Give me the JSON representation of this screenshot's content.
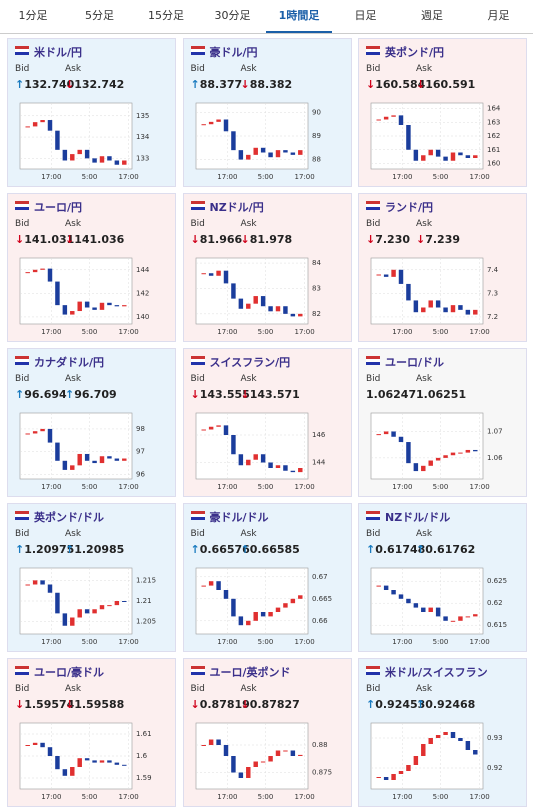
{
  "tabs": [
    "1分足",
    "5分足",
    "15分足",
    "30分足",
    "1時間足",
    "日足",
    "週足",
    "月足"
  ],
  "active_tab": 4,
  "bid_label": "Bid",
  "ask_label": "Ask",
  "panels": [
    {
      "name": "米ドル/円",
      "trend": "up",
      "bid_arrow": "↑",
      "bid": "132.740",
      "ask_arrow": "↓",
      "ask": "132.742",
      "chart": {
        "ylim": [
          132.5,
          135.6
        ],
        "yticks": [
          135,
          134,
          133
        ],
        "xticks": [
          "17:00",
          "5:00",
          "17:00"
        ],
        "values": [
          134.5,
          134.7,
          134.8,
          134.3,
          133.4,
          132.9,
          133.2,
          133.4,
          133.0,
          132.8,
          133.1,
          132.9,
          132.7,
          132.9
        ]
      }
    },
    {
      "name": "豪ドル/円",
      "trend": "up",
      "bid_arrow": "↑",
      "bid": "88.377",
      "ask_arrow": "↓",
      "ask": "88.382",
      "chart": {
        "ylim": [
          87.6,
          90.4
        ],
        "yticks": [
          90,
          89,
          88
        ],
        "xticks": [
          "17:00",
          "5:00",
          "17:00"
        ],
        "values": [
          89.5,
          89.6,
          89.7,
          89.2,
          88.4,
          88.0,
          88.2,
          88.5,
          88.3,
          88.1,
          88.4,
          88.3,
          88.2,
          88.4
        ]
      }
    },
    {
      "name": "英ポンド/円",
      "trend": "down",
      "bid_arrow": "↓",
      "bid": "160.584",
      "ask_arrow": "↓",
      "ask": "160.591",
      "chart": {
        "ylim": [
          159.6,
          164.4
        ],
        "yticks": [
          164,
          163,
          162,
          161,
          160
        ],
        "xticks": [
          "17:00",
          "5:00",
          "17:00"
        ],
        "values": [
          163.2,
          163.4,
          163.5,
          162.8,
          161.0,
          160.2,
          160.6,
          161.0,
          160.5,
          160.2,
          160.8,
          160.6,
          160.4,
          160.6
        ]
      }
    },
    {
      "name": "ユーロ/円",
      "trend": "down",
      "bid_arrow": "↓",
      "bid": "141.031",
      "ask_arrow": "↓",
      "ask": "141.036",
      "chart": {
        "ylim": [
          139.4,
          145
        ],
        "yticks": [
          144,
          142,
          140
        ],
        "xticks": [
          "17:00",
          "5:00",
          "17:00"
        ],
        "values": [
          143.8,
          144.0,
          144.1,
          143.0,
          141.0,
          140.2,
          140.5,
          141.3,
          140.8,
          140.6,
          141.2,
          141.0,
          140.9,
          141.0
        ]
      }
    },
    {
      "name": "NZドル/円",
      "trend": "down",
      "bid_arrow": "↓",
      "bid": "81.966",
      "ask_arrow": "↓",
      "ask": "81.978",
      "chart": {
        "ylim": [
          81.6,
          84.2
        ],
        "yticks": [
          84,
          83,
          82
        ],
        "xticks": [
          "17:00",
          "5:00",
          "17:00"
        ],
        "values": [
          83.6,
          83.5,
          83.7,
          83.2,
          82.6,
          82.2,
          82.4,
          82.7,
          82.3,
          82.1,
          82.3,
          82.0,
          81.9,
          82.0
        ]
      }
    },
    {
      "name": "ランド/円",
      "trend": "down",
      "bid_arrow": "↓",
      "bid": "7.230",
      "ask_arrow": "↓",
      "ask": "7.239",
      "chart": {
        "ylim": [
          7.17,
          7.45
        ],
        "yticks": [
          7.4,
          7.3,
          7.2
        ],
        "xticks": [
          "17:00",
          "5:00",
          "17:00"
        ],
        "values": [
          7.38,
          7.37,
          7.4,
          7.34,
          7.27,
          7.22,
          7.24,
          7.27,
          7.24,
          7.22,
          7.25,
          7.23,
          7.21,
          7.23
        ]
      }
    },
    {
      "name": "カナダドル/円",
      "trend": "up",
      "bid_arrow": "↑",
      "bid": "96.694",
      "ask_arrow": "↑",
      "ask": "96.709",
      "chart": {
        "ylim": [
          95.8,
          98.7
        ],
        "yticks": [
          98,
          97,
          96
        ],
        "xticks": [
          "17:00",
          "5:00",
          "17:00"
        ],
        "values": [
          97.8,
          97.9,
          98.0,
          97.4,
          96.6,
          96.2,
          96.4,
          96.9,
          96.6,
          96.5,
          96.8,
          96.7,
          96.6,
          96.7
        ]
      }
    },
    {
      "name": "スイスフラン/円",
      "trend": "down",
      "bid_arrow": "↓",
      "bid": "143.555",
      "ask_arrow": "↓",
      "ask": "143.571",
      "chart": {
        "ylim": [
          142.8,
          147.6
        ],
        "yticks": [
          146,
          144
        ],
        "xticks": [
          "17:00",
          "5:00",
          "17:00"
        ],
        "values": [
          146.4,
          146.6,
          146.7,
          146.0,
          144.6,
          143.8,
          144.2,
          144.6,
          144.0,
          143.6,
          143.8,
          143.4,
          143.3,
          143.6
        ]
      }
    },
    {
      "name": "ユーロ/ドル",
      "trend": "flat",
      "bid": "1.06247",
      "ask": "1.06251",
      "chart": {
        "ylim": [
          1.052,
          1.077
        ],
        "yticks": [
          1.07,
          1.06
        ],
        "xticks": [
          "17:00",
          "5:00",
          "17:00"
        ],
        "values": [
          1.069,
          1.07,
          1.068,
          1.066,
          1.058,
          1.055,
          1.057,
          1.059,
          1.06,
          1.061,
          1.062,
          1.062,
          1.063,
          1.0625
        ]
      }
    },
    {
      "name": "英ポンド/ドル",
      "trend": "up",
      "bid_arrow": "↑",
      "bid": "1.20975",
      "ask_arrow": "↑",
      "ask": "1.20985",
      "chart": {
        "ylim": [
          1.202,
          1.218
        ],
        "yticks": [
          1.215,
          1.21,
          1.205
        ],
        "xticks": [
          "17:00",
          "5:00",
          "17:00"
        ],
        "values": [
          1.214,
          1.215,
          1.214,
          1.212,
          1.207,
          1.204,
          1.206,
          1.208,
          1.207,
          1.208,
          1.209,
          1.209,
          1.21,
          1.2098
        ]
      }
    },
    {
      "name": "豪ドル/ドル",
      "trend": "up",
      "bid_arrow": "↑",
      "bid": "0.66576",
      "ask_arrow": "↑",
      "ask": "0.66585",
      "chart": {
        "ylim": [
          0.657,
          0.672
        ],
        "yticks": [
          0.67,
          0.665,
          0.66
        ],
        "xticks": [
          "17:00",
          "5:00",
          "17:00"
        ],
        "values": [
          0.668,
          0.669,
          0.667,
          0.665,
          0.661,
          0.659,
          0.66,
          0.662,
          0.661,
          0.662,
          0.663,
          0.664,
          0.665,
          0.6658
        ]
      }
    },
    {
      "name": "NZドル/ドル",
      "trend": "up",
      "bid_arrow": "↑",
      "bid": "0.61748",
      "ask_arrow": "↑",
      "ask": "0.61762",
      "chart": {
        "ylim": [
          0.613,
          0.628
        ],
        "yticks": [
          0.625,
          0.62,
          0.615
        ],
        "xticks": [
          "17:00",
          "5:00",
          "17:00"
        ],
        "values": [
          0.624,
          0.623,
          0.622,
          0.621,
          0.62,
          0.619,
          0.618,
          0.619,
          0.617,
          0.616,
          0.616,
          0.617,
          0.617,
          0.6175
        ]
      }
    },
    {
      "name": "ユーロ/豪ドル",
      "trend": "down",
      "bid_arrow": "↓",
      "bid": "1.59574",
      "ask_arrow": "↓",
      "ask": "1.59588",
      "chart": {
        "ylim": [
          1.585,
          1.615
        ],
        "yticks": [
          1.61,
          1.6,
          1.59
        ],
        "xticks": [
          "17:00",
          "5:00",
          "17:00"
        ],
        "values": [
          1.605,
          1.606,
          1.604,
          1.6,
          1.594,
          1.591,
          1.595,
          1.599,
          1.598,
          1.597,
          1.598,
          1.597,
          1.596,
          1.5957
        ]
      }
    },
    {
      "name": "ユーロ/英ポンド",
      "trend": "down",
      "bid_arrow": "↓",
      "bid": "0.87819",
      "ask_arrow": "↓",
      "ask": "0.87827",
      "chart": {
        "ylim": [
          0.872,
          0.884
        ],
        "yticks": [
          0.88,
          0.875
        ],
        "xticks": [
          "17:00",
          "5:00",
          "17:00"
        ],
        "values": [
          0.88,
          0.881,
          0.88,
          0.878,
          0.875,
          0.874,
          0.876,
          0.877,
          0.877,
          0.878,
          0.879,
          0.879,
          0.878,
          0.8782
        ]
      }
    },
    {
      "name": "米ドル/スイスフラン",
      "trend": "up",
      "bid_arrow": "↑",
      "bid": "0.92453",
      "ask_arrow": "↑",
      "ask": "0.92468",
      "chart": {
        "ylim": [
          0.913,
          0.935
        ],
        "yticks": [
          0.93,
          0.92
        ],
        "xticks": [
          "17:00",
          "5:00",
          "17:00"
        ],
        "values": [
          0.917,
          0.916,
          0.918,
          0.919,
          0.921,
          0.924,
          0.928,
          0.93,
          0.931,
          0.932,
          0.93,
          0.929,
          0.926,
          0.9245
        ]
      }
    }
  ]
}
